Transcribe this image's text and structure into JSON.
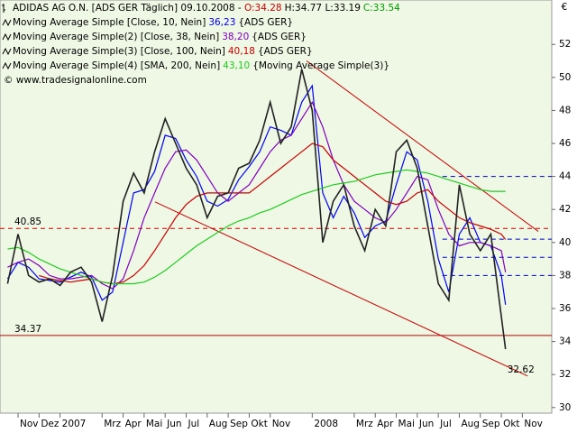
{
  "chart_data": {
    "type": "line",
    "header": [
      {
        "text": "ADIDAS AG O.N. [ADS GER  Täglich] 09.10.2008 -",
        "color": "#000000"
      },
      {
        "text": "O:34.28",
        "color": "#cc0000"
      },
      {
        "text": "H:34.77 L:33.19",
        "color": "#000000"
      },
      {
        "text": "C:33.54",
        "color": "#009900"
      }
    ],
    "copyright": "© www.tradesignalonline.com",
    "currency": "€",
    "x": [
      -0.5,
      0,
      0.5,
      1,
      1.5,
      2,
      2.5,
      3,
      3.5,
      4,
      4.5,
      5,
      5.5,
      6,
      6.5,
      7,
      7.5,
      8,
      8.5,
      9,
      9.5,
      10,
      10.5,
      11,
      11.5,
      12,
      12.5,
      13,
      13.5,
      14,
      14.5,
      15,
      15.5,
      16,
      16.5,
      17,
      17.5,
      18,
      18.5,
      19,
      19.5,
      20,
      20.5,
      21,
      21.5,
      22,
      22.5,
      23,
      23.2
    ],
    "price": {
      "color": "#222222",
      "values": [
        37.5,
        40.5,
        38,
        37.6,
        37.8,
        37.4,
        38.2,
        38.5,
        37.6,
        35.2,
        38,
        42.5,
        44.2,
        43,
        45.5,
        47.5,
        46,
        44.5,
        43.5,
        41.5,
        42.8,
        43,
        44.5,
        44.8,
        46.2,
        48.5,
        46,
        47,
        50.5,
        48,
        40,
        42.5,
        43.5,
        41,
        39.5,
        42,
        41,
        45.5,
        46.2,
        44.5,
        41,
        37.5,
        36.5,
        43.5,
        40.5,
        39.5,
        40.5,
        35.5,
        33.54
      ]
    },
    "series": [
      {
        "name": "Moving Average Simple [Close, 10, Nein]",
        "last_label": "36,23",
        "source": "{ADS GER}",
        "color": "#0000ff",
        "values": [
          37.8,
          38.8,
          38.5,
          37.8,
          37.7,
          37.6,
          37.9,
          38.2,
          37.9,
          36.5,
          37,
          40,
          43,
          43.2,
          44.3,
          46.5,
          46.3,
          45,
          44,
          42.5,
          42.2,
          42.6,
          43.8,
          44.6,
          45.5,
          47,
          46.8,
          46.5,
          48.5,
          49.5,
          43,
          41.5,
          42.8,
          41.8,
          40.3,
          41,
          41.3,
          43.5,
          45.5,
          45,
          42.5,
          39,
          37,
          40.5,
          41.5,
          40,
          39.8,
          38,
          36.23
        ]
      },
      {
        "name": "Moving Average Simple(2) [Close, 38, Nein]",
        "last_label": "38,20",
        "source": "{ADS GER}",
        "color": "#8000c0",
        "values": [
          38.5,
          38.8,
          39,
          38.6,
          38,
          37.8,
          37.8,
          37.9,
          38,
          37.5,
          37.2,
          37.8,
          39.5,
          41.5,
          43,
          44.5,
          45.5,
          45.6,
          45,
          44,
          43,
          42.5,
          43,
          43.5,
          44.5,
          45.5,
          46.2,
          46.5,
          47.5,
          48.5,
          47,
          45,
          43.5,
          42.5,
          42,
          41.5,
          41.2,
          42,
          43,
          44,
          43.8,
          42,
          40.5,
          39.8,
          40,
          40,
          39.8,
          39.5,
          38.2
        ]
      },
      {
        "name": "Moving Average Simple(3) [Close, 100, Nein]",
        "last_label": "40,18",
        "source": "{ADS GER}",
        "color": "#cc0000",
        "values": [
          null,
          null,
          null,
          38,
          37.8,
          37.7,
          37.6,
          37.7,
          37.8,
          37.6,
          37.5,
          37.6,
          38,
          38.6,
          39.5,
          40.5,
          41.5,
          42.3,
          42.8,
          43,
          43,
          43,
          43,
          43,
          43.5,
          44,
          44.5,
          45,
          45.5,
          46,
          45.8,
          45,
          44.5,
          44,
          43.5,
          43,
          42.5,
          42.3,
          42.5,
          43,
          43.2,
          42.5,
          42,
          41.5,
          41.2,
          41,
          40.8,
          40.5,
          40.18
        ]
      },
      {
        "name": "Moving Average Simple(4) [SMA, 200, Nein]",
        "last_label": "43,10",
        "source": "{Moving Average Simple(3)}",
        "color": "#22cc22",
        "values": [
          39.6,
          39.7,
          39.4,
          39,
          38.7,
          38.4,
          38.2,
          38,
          37.8,
          37.6,
          37.5,
          37.5,
          37.5,
          37.6,
          37.9,
          38.3,
          38.8,
          39.3,
          39.8,
          40.2,
          40.6,
          41,
          41.3,
          41.5,
          41.8,
          42,
          42.3,
          42.6,
          42.9,
          43.1,
          43.3,
          43.5,
          43.6,
          43.7,
          43.9,
          44.1,
          44.2,
          44.3,
          44.4,
          44.3,
          44.2,
          44,
          43.8,
          43.6,
          43.4,
          43.2,
          43.1,
          43.1,
          43.1
        ]
      }
    ],
    "hlines": [
      {
        "value": 40.85,
        "label": "40.85",
        "color": "#cc0000",
        "dashed": true
      },
      {
        "value": 34.37,
        "label": "34.37",
        "color": "#cc0000",
        "dashed": false
      }
    ],
    "levels": {
      "from": 20.2,
      "color": "#0000cc",
      "values": [
        44,
        40.2,
        39.1,
        38
      ]
    },
    "trendlines": [
      {
        "x": [
          6.52,
          24.25
        ],
        "y": [
          42.46,
          31.91
        ],
        "color": "#cc0000"
      },
      {
        "x": [
          13.73,
          24.76
        ],
        "y": [
          51.0,
          40.67
        ],
        "color": "#cc0000"
      }
    ],
    "low_label": {
      "x": 23.2,
      "value": 32.62,
      "label": "32.62"
    },
    "xlim": [
      -0.86,
      25.4
    ],
    "ylim": [
      29.66,
      54.69
    ],
    "yticks": [
      30,
      32,
      34,
      36,
      38,
      40,
      42,
      44,
      46,
      48,
      50,
      52
    ],
    "xticks": [
      {
        "value": 0,
        "label": "Nov"
      },
      {
        "value": 1,
        "label": "Dez"
      },
      {
        "value": 2,
        "label": "2007"
      },
      {
        "value": 4,
        "label": "Mrz"
      },
      {
        "value": 5,
        "label": "Apr"
      },
      {
        "value": 6,
        "label": "Mai"
      },
      {
        "value": 7,
        "label": "Jun"
      },
      {
        "value": 8,
        "label": "Jul"
      },
      {
        "value": 9,
        "label": "Aug"
      },
      {
        "value": 10,
        "label": "Sep"
      },
      {
        "value": 11,
        "label": "Okt"
      },
      {
        "value": 12,
        "label": "Nov"
      },
      {
        "value": 14,
        "label": "2008"
      },
      {
        "value": 16,
        "label": "Mrz"
      },
      {
        "value": 17,
        "label": "Apr"
      },
      {
        "value": 18,
        "label": "Mai"
      },
      {
        "value": 19,
        "label": "Jun"
      },
      {
        "value": 20,
        "label": "Jul"
      },
      {
        "value": 21,
        "label": "Aug"
      },
      {
        "value": 22,
        "label": "Sep"
      },
      {
        "value": 23,
        "label": "Okt"
      },
      {
        "value": 24,
        "label": "Nov"
      }
    ]
  }
}
